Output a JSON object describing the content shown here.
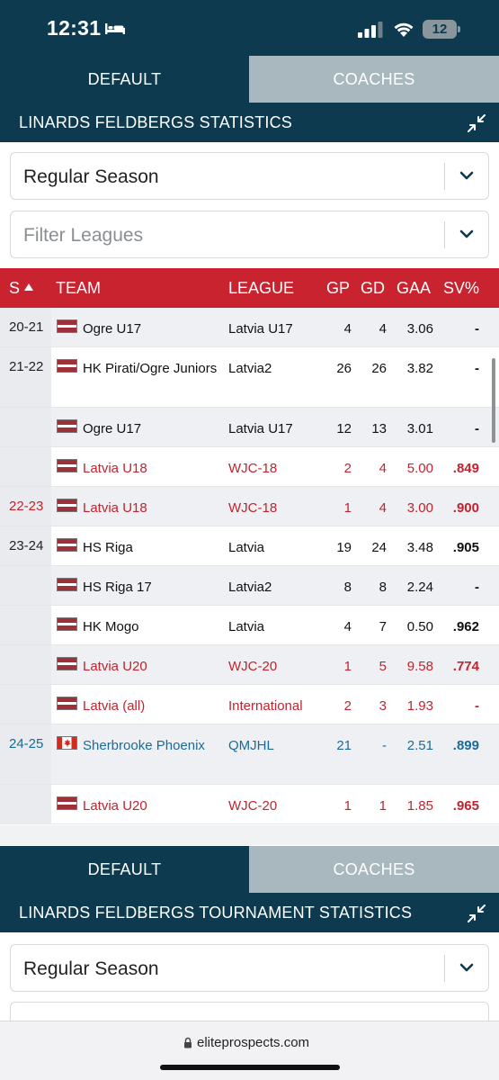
{
  "status_bar": {
    "time": "12:31",
    "battery": "12"
  },
  "section1": {
    "tabs": [
      {
        "label": "DEFAULT",
        "active": true
      },
      {
        "label": "COACHES",
        "active": false
      }
    ],
    "title": "LINARDS FELDBERGS STATISTICS",
    "season_select": "Regular Season",
    "league_filter_placeholder": "Filter Leagues"
  },
  "stats_table": {
    "columns": {
      "season": "S",
      "team": "TEAM",
      "league": "LEAGUE",
      "gp": "GP",
      "gd": "GD",
      "gaa": "GAA",
      "svp": "SV%"
    },
    "rows": [
      {
        "season": "20-21",
        "flag": "latvia",
        "team": "Ogre U17",
        "league": "Latvia U17",
        "gp": "4",
        "gd": "4",
        "gaa": "3.06",
        "svp": "-",
        "style": "normal"
      },
      {
        "season": "21-22",
        "flag": "latvia",
        "team": "HK Pirati/Ogre Juniors",
        "league": "Latvia2",
        "gp": "26",
        "gd": "26",
        "gaa": "3.82",
        "svp": "-",
        "style": "normal"
      },
      {
        "season": "",
        "flag": "latvia",
        "team": "Ogre U17",
        "league": "Latvia U17",
        "gp": "12",
        "gd": "13",
        "gaa": "3.01",
        "svp": "-",
        "style": "normal"
      },
      {
        "season": "",
        "flag": "latvia",
        "team": "Latvia U18",
        "league": "WJC-18",
        "gp": "2",
        "gd": "4",
        "gaa": "5.00",
        "svp": ".849",
        "style": "international"
      },
      {
        "season": "22-23",
        "flag": "latvia",
        "team": "Latvia U18",
        "league": "WJC-18",
        "gp": "1",
        "gd": "4",
        "gaa": "3.00",
        "svp": ".900",
        "style": "international"
      },
      {
        "season": "23-24",
        "flag": "latvia",
        "team": "HS Riga",
        "league": "Latvia",
        "gp": "19",
        "gd": "24",
        "gaa": "3.48",
        "svp": ".905",
        "style": "normal"
      },
      {
        "season": "",
        "flag": "latvia",
        "team": "HS Riga 17",
        "league": "Latvia2",
        "gp": "8",
        "gd": "8",
        "gaa": "2.24",
        "svp": "-",
        "style": "normal"
      },
      {
        "season": "",
        "flag": "latvia",
        "team": "HK Mogo",
        "league": "Latvia",
        "gp": "4",
        "gd": "7",
        "gaa": "0.50",
        "svp": ".962",
        "style": "normal"
      },
      {
        "season": "",
        "flag": "latvia",
        "team": "Latvia U20",
        "league": "WJC-20",
        "gp": "1",
        "gd": "5",
        "gaa": "9.58",
        "svp": ".774",
        "style": "international"
      },
      {
        "season": "",
        "flag": "latvia",
        "team": "Latvia (all)",
        "league": "International",
        "gp": "2",
        "gd": "3",
        "gaa": "1.93",
        "svp": "-",
        "style": "international"
      },
      {
        "season": "24-25",
        "flag": "canada",
        "team": "Sherbrooke Phoenix",
        "league": "QMJHL",
        "gp": "21",
        "gd": "-",
        "gaa": "2.51",
        "svp": ".899",
        "style": "current"
      },
      {
        "season": "",
        "flag": "latvia",
        "team": "Latvia U20",
        "league": "WJC-20",
        "gp": "1",
        "gd": "1",
        "gaa": "1.85",
        "svp": ".965",
        "style": "international"
      }
    ]
  },
  "section2": {
    "tabs": [
      {
        "label": "DEFAULT",
        "active": true
      },
      {
        "label": "COACHES",
        "active": false
      }
    ],
    "title": "LINARDS FELDBERGS TOURNAMENT STATISTICS",
    "season_select": "Regular Season"
  },
  "browser": {
    "url": "eliteprospects.com"
  },
  "colors": {
    "navy": "#0e3a4f",
    "header_red": "#c8232f",
    "international_red": "#c0242f",
    "current_blue": "#1a6c96",
    "inactive_tab": "#a9b7bf"
  }
}
